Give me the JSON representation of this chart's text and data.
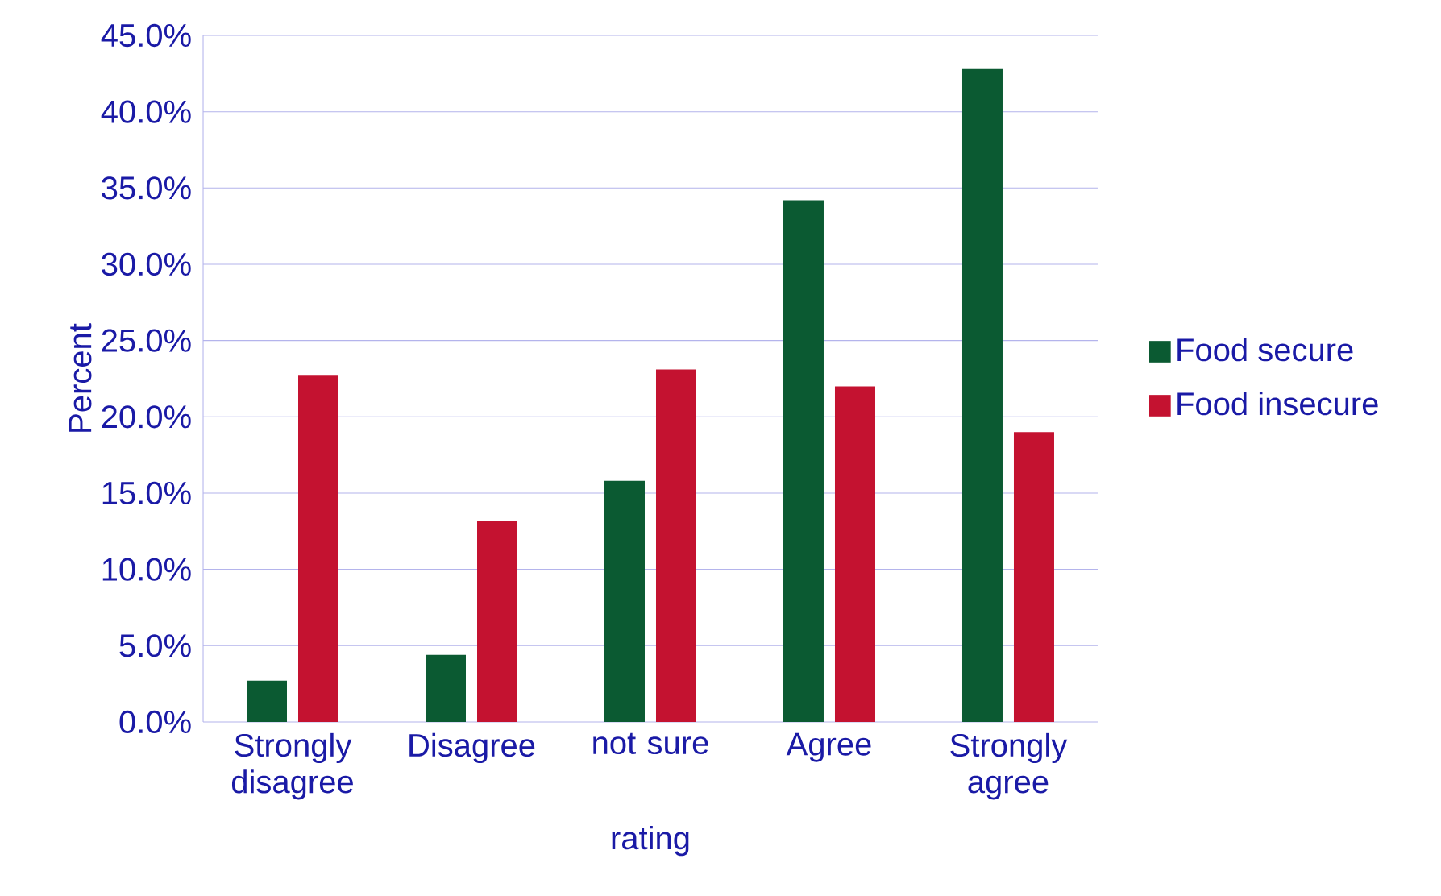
{
  "chart_data": {
    "type": "bar",
    "xlabel": "rating",
    "ylabel": "Percent",
    "categories": [
      "Strongly disagree",
      "Disagree",
      "not sure",
      "Agree",
      "Strongly agree"
    ],
    "series": [
      {
        "name": "Food secure",
        "color": "#0b5a32",
        "values": [
          2.7,
          4.4,
          15.8,
          34.2,
          42.8
        ]
      },
      {
        "name": "Food insecure",
        "color": "#c41230",
        "values": [
          22.7,
          13.2,
          23.1,
          22.0,
          19.0
        ]
      }
    ],
    "ylim": [
      0,
      45
    ],
    "yticks": [
      {
        "value": 0,
        "label": "0.0%"
      },
      {
        "value": 5,
        "label": "5.0%"
      },
      {
        "value": 10,
        "label": "10.0%"
      },
      {
        "value": 15,
        "label": "15.0%"
      },
      {
        "value": 20,
        "label": "20.0%"
      },
      {
        "value": 25,
        "label": "25.0%"
      },
      {
        "value": 30,
        "label": "30.0%"
      },
      {
        "value": 35,
        "label": "35.0%"
      },
      {
        "value": 40,
        "label": "40.0%"
      },
      {
        "value": 45,
        "label": "45.0%"
      }
    ],
    "grid": "y",
    "legend": "right"
  }
}
